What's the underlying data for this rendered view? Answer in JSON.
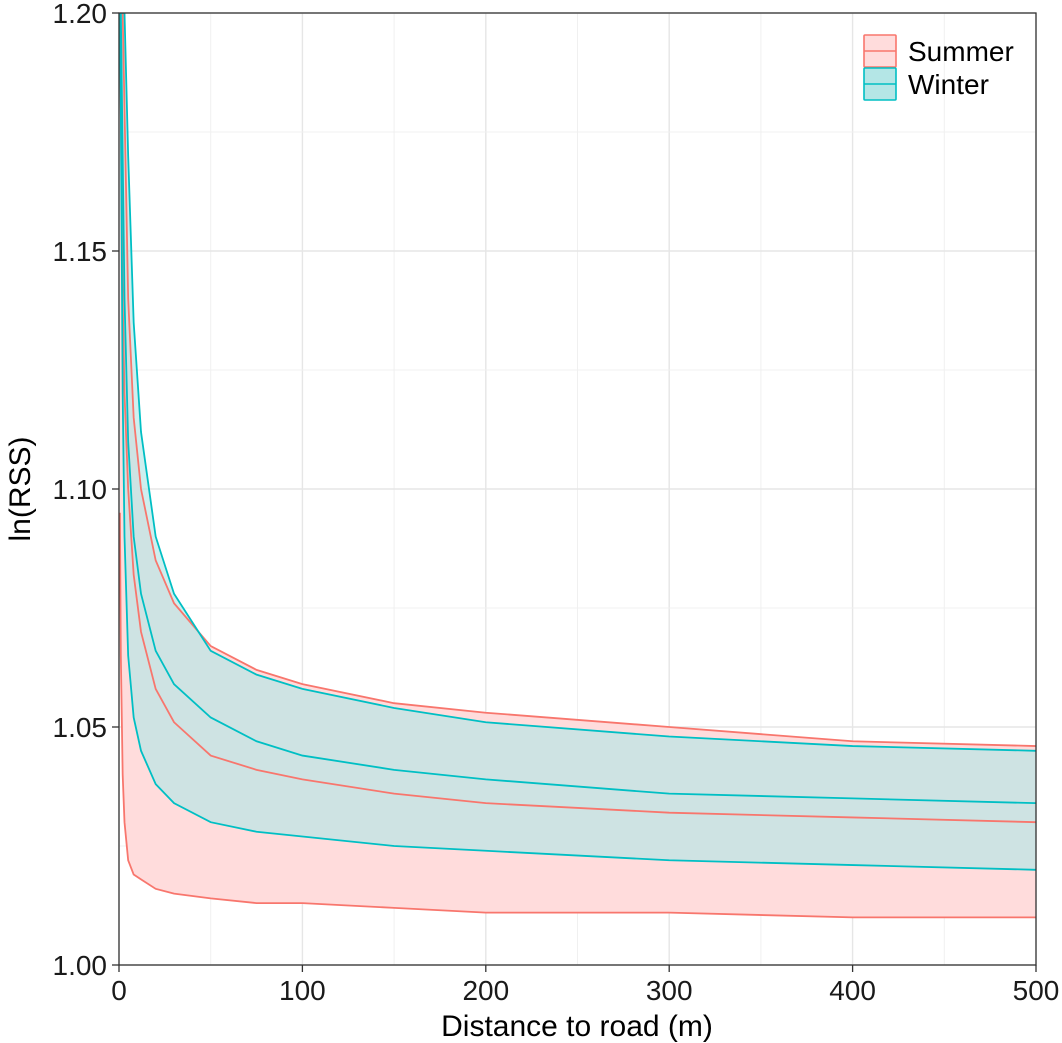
{
  "chart_data": {
    "type": "area",
    "title": "",
    "xlabel": "Distance to road (m)",
    "ylabel": "ln(RSS)",
    "xlim": [
      0,
      500
    ],
    "ylim": [
      1.0,
      1.2
    ],
    "x_ticks": [
      0,
      100,
      200,
      300,
      400,
      500
    ],
    "x_tick_labels": [
      "0",
      "100",
      "200",
      "300",
      "400",
      "500"
    ],
    "y_ticks": [
      1.0,
      1.05,
      1.1,
      1.15,
      1.2
    ],
    "y_tick_labels": [
      "1.00",
      "1.05",
      "1.10",
      "1.15",
      "1.20"
    ],
    "grid": true,
    "legend_position": "top-right",
    "x": [
      0.5,
      1,
      2,
      3,
      5,
      8,
      12,
      20,
      30,
      50,
      75,
      100,
      150,
      200,
      300,
      400,
      500
    ],
    "series": [
      {
        "name": "Summer",
        "color": "#F8766D",
        "fill": "#FFDCDC",
        "estimate": [
          1.2,
          1.18,
          1.14,
          1.12,
          1.1,
          1.082,
          1.07,
          1.058,
          1.051,
          1.044,
          1.041,
          1.039,
          1.036,
          1.034,
          1.032,
          1.031,
          1.03
        ],
        "lower": [
          1.095,
          1.065,
          1.04,
          1.03,
          1.022,
          1.019,
          1.018,
          1.016,
          1.015,
          1.014,
          1.013,
          1.013,
          1.012,
          1.011,
          1.011,
          1.01,
          1.01
        ],
        "upper": [
          1.2,
          1.2,
          1.2,
          1.18,
          1.14,
          1.115,
          1.1,
          1.085,
          1.076,
          1.067,
          1.062,
          1.059,
          1.055,
          1.053,
          1.05,
          1.047,
          1.046
        ]
      },
      {
        "name": "Winter",
        "color": "#00BFC4",
        "fill": "#B4E6E6",
        "estimate": [
          1.2,
          1.2,
          1.17,
          1.14,
          1.11,
          1.09,
          1.078,
          1.066,
          1.059,
          1.052,
          1.047,
          1.044,
          1.041,
          1.039,
          1.036,
          1.035,
          1.034
        ],
        "lower": [
          1.2,
          1.18,
          1.12,
          1.09,
          1.065,
          1.052,
          1.045,
          1.038,
          1.034,
          1.03,
          1.028,
          1.027,
          1.025,
          1.024,
          1.022,
          1.021,
          1.02
        ],
        "upper": [
          1.2,
          1.2,
          1.2,
          1.2,
          1.17,
          1.135,
          1.112,
          1.09,
          1.078,
          1.066,
          1.061,
          1.058,
          1.054,
          1.051,
          1.048,
          1.046,
          1.045
        ]
      }
    ]
  }
}
